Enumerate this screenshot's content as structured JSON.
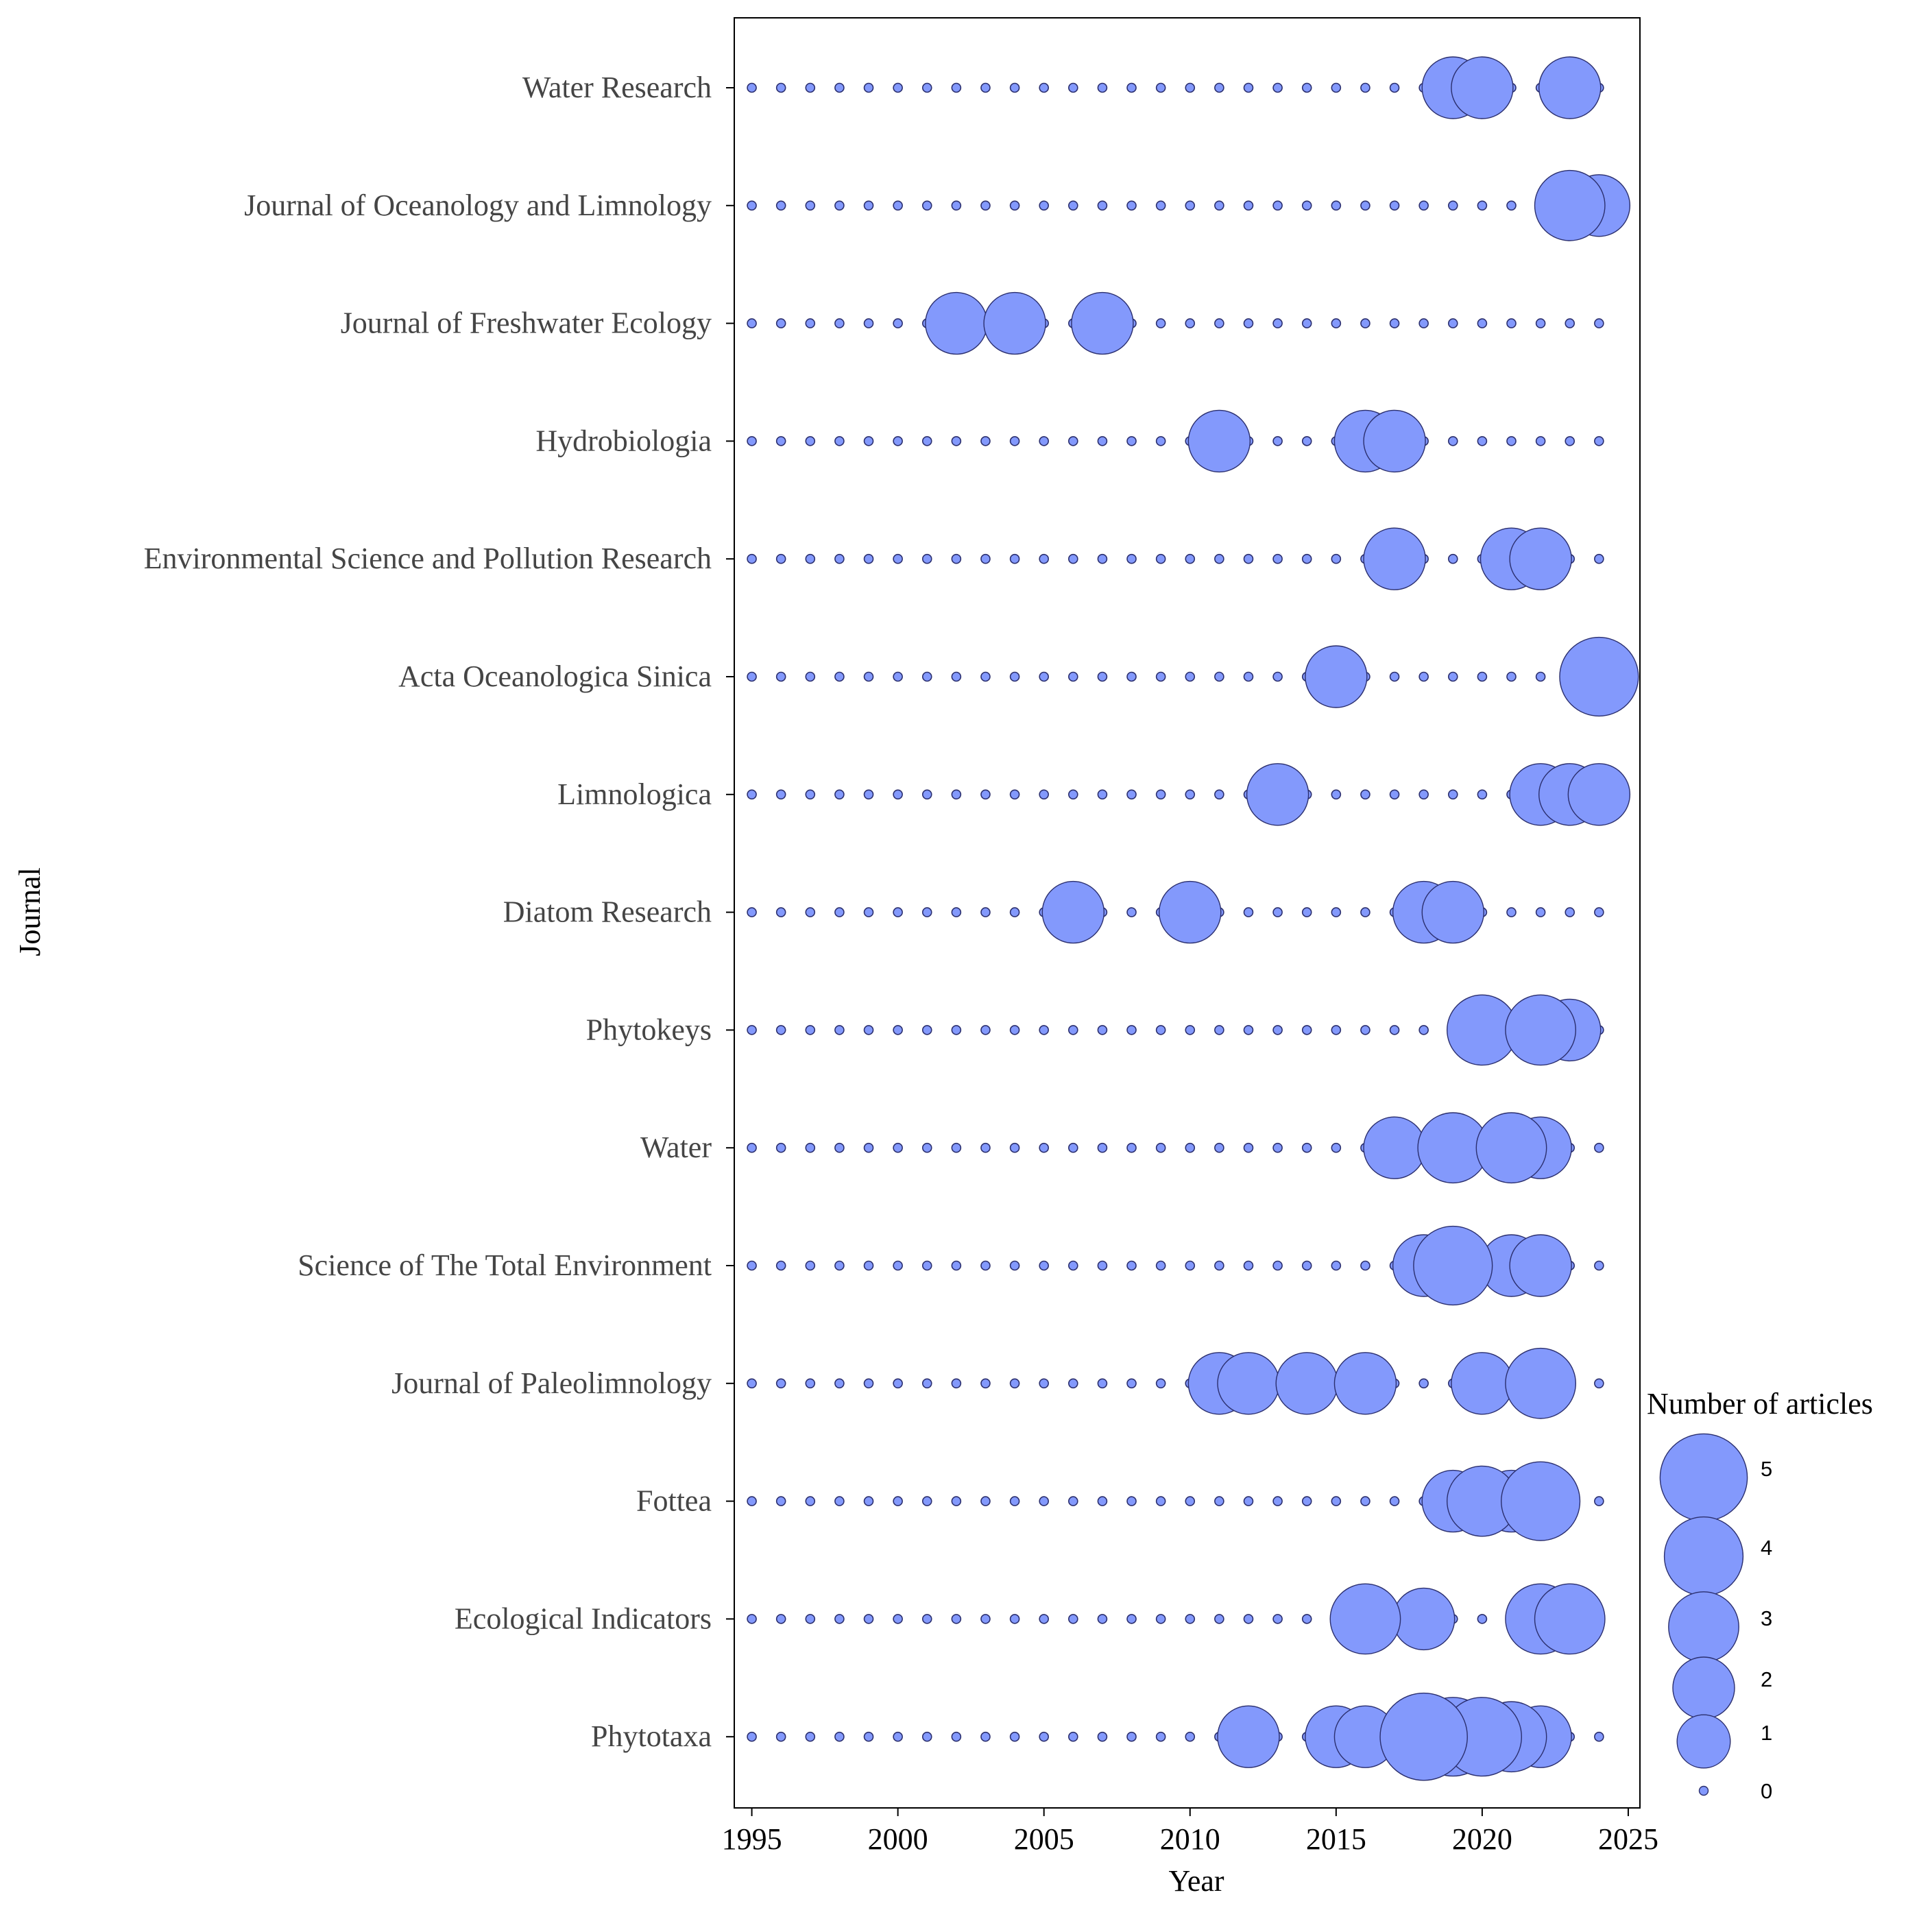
{
  "chart_data": {
    "type": "scatter",
    "subtype": "bubble",
    "xlabel": "Year",
    "ylabel": "Journal",
    "xlim": [
      1994.4,
      2025.4
    ],
    "xticks": [
      1995,
      2000,
      2005,
      2010,
      2015,
      2020,
      2025
    ],
    "years": [
      1995,
      1996,
      1997,
      1998,
      1999,
      2000,
      2001,
      2002,
      2003,
      2004,
      2005,
      2006,
      2007,
      2008,
      2009,
      2010,
      2011,
      2012,
      2013,
      2014,
      2015,
      2016,
      2017,
      2018,
      2019,
      2020,
      2021,
      2022,
      2023,
      2024
    ],
    "colors": {
      "fill": "#8399fc",
      "stroke": "#2b2f6e",
      "axis": "#000000"
    },
    "series": [
      {
        "name": "Water Research",
        "values": [
          0,
          0,
          0,
          0,
          0,
          0,
          0,
          0,
          0,
          0,
          0,
          0,
          0,
          0,
          0,
          0,
          0,
          0,
          0,
          0,
          0,
          0,
          0,
          0,
          2,
          2,
          0,
          0,
          2,
          0
        ]
      },
      {
        "name": "Journal of Oceanology and Limnology",
        "values": [
          0,
          0,
          0,
          0,
          0,
          0,
          0,
          0,
          0,
          0,
          0,
          0,
          0,
          0,
          0,
          0,
          0,
          0,
          0,
          0,
          0,
          0,
          0,
          0,
          0,
          0,
          0,
          0,
          3,
          2
        ]
      },
      {
        "name": "Journal of Freshwater Ecology",
        "values": [
          0,
          0,
          0,
          0,
          0,
          0,
          0,
          2,
          0,
          2,
          0,
          0,
          2,
          0,
          0,
          0,
          0,
          0,
          0,
          0,
          0,
          0,
          0,
          0,
          0,
          0,
          0,
          0,
          0,
          0
        ]
      },
      {
        "name": "Hydrobiologia",
        "values": [
          0,
          0,
          0,
          0,
          0,
          0,
          0,
          0,
          0,
          0,
          0,
          0,
          0,
          0,
          0,
          0,
          2,
          0,
          0,
          0,
          0,
          2,
          2,
          0,
          0,
          0,
          0,
          0,
          0,
          0
        ]
      },
      {
        "name": "Environmental Science and Pollution Research",
        "values": [
          0,
          0,
          0,
          0,
          0,
          0,
          0,
          0,
          0,
          0,
          0,
          0,
          0,
          0,
          0,
          0,
          0,
          0,
          0,
          0,
          0,
          0,
          2,
          0,
          0,
          0,
          2,
          2,
          0,
          0
        ]
      },
      {
        "name": "Acta Oceanologica Sinica",
        "values": [
          0,
          0,
          0,
          0,
          0,
          0,
          0,
          0,
          0,
          0,
          0,
          0,
          0,
          0,
          0,
          0,
          0,
          0,
          0,
          0,
          2,
          0,
          0,
          0,
          0,
          0,
          0,
          0,
          0,
          4
        ]
      },
      {
        "name": "Limnologica",
        "values": [
          0,
          0,
          0,
          0,
          0,
          0,
          0,
          0,
          0,
          0,
          0,
          0,
          0,
          0,
          0,
          0,
          0,
          0,
          2,
          0,
          0,
          0,
          0,
          0,
          0,
          0,
          0,
          2,
          2,
          2
        ]
      },
      {
        "name": "Diatom Research",
        "values": [
          0,
          0,
          0,
          0,
          0,
          0,
          0,
          0,
          0,
          0,
          0,
          2,
          0,
          0,
          0,
          2,
          0,
          0,
          0,
          0,
          0,
          0,
          0,
          2,
          2,
          0,
          0,
          0,
          0,
          0
        ]
      },
      {
        "name": "Phytokeys",
        "values": [
          0,
          0,
          0,
          0,
          0,
          0,
          0,
          0,
          0,
          0,
          0,
          0,
          0,
          0,
          0,
          0,
          0,
          0,
          0,
          0,
          0,
          0,
          0,
          0,
          0,
          3,
          0,
          3,
          2,
          0
        ]
      },
      {
        "name": "Water",
        "values": [
          0,
          0,
          0,
          0,
          0,
          0,
          0,
          0,
          0,
          0,
          0,
          0,
          0,
          0,
          0,
          0,
          0,
          0,
          0,
          0,
          0,
          0,
          2,
          0,
          3,
          0,
          3,
          2,
          0,
          0
        ]
      },
      {
        "name": "Science of The Total Environment",
        "values": [
          0,
          0,
          0,
          0,
          0,
          0,
          0,
          0,
          0,
          0,
          0,
          0,
          0,
          0,
          0,
          0,
          0,
          0,
          0,
          0,
          0,
          0,
          0,
          2,
          4,
          0,
          2,
          2,
          0,
          0
        ]
      },
      {
        "name": "Journal of Paleolimnology",
        "values": [
          0,
          0,
          0,
          0,
          0,
          0,
          0,
          0,
          0,
          0,
          0,
          0,
          0,
          0,
          0,
          0,
          2,
          2,
          0,
          2,
          0,
          2,
          0,
          0,
          0,
          2,
          0,
          3,
          0,
          0
        ]
      },
      {
        "name": "Fottea",
        "values": [
          0,
          0,
          0,
          0,
          0,
          0,
          0,
          0,
          0,
          0,
          0,
          0,
          0,
          0,
          0,
          0,
          0,
          0,
          0,
          0,
          0,
          0,
          0,
          0,
          2,
          3,
          2,
          4,
          0,
          0
        ]
      },
      {
        "name": "Ecological Indicators",
        "values": [
          0,
          0,
          0,
          0,
          0,
          0,
          0,
          0,
          0,
          0,
          0,
          0,
          0,
          0,
          0,
          0,
          0,
          0,
          0,
          0,
          0,
          3,
          0,
          2,
          0,
          0,
          0,
          3,
          3,
          0
        ]
      },
      {
        "name": "Phytotaxa",
        "values": [
          0,
          0,
          0,
          0,
          0,
          0,
          0,
          0,
          0,
          0,
          0,
          0,
          0,
          0,
          0,
          0,
          0,
          2,
          0,
          0,
          2,
          2,
          0,
          5,
          4,
          4,
          3,
          2,
          0,
          0
        ]
      }
    ],
    "legend": {
      "title": "Number of articles",
      "position": "right",
      "entries": [
        5,
        4,
        3,
        2,
        1,
        0
      ]
    }
  }
}
